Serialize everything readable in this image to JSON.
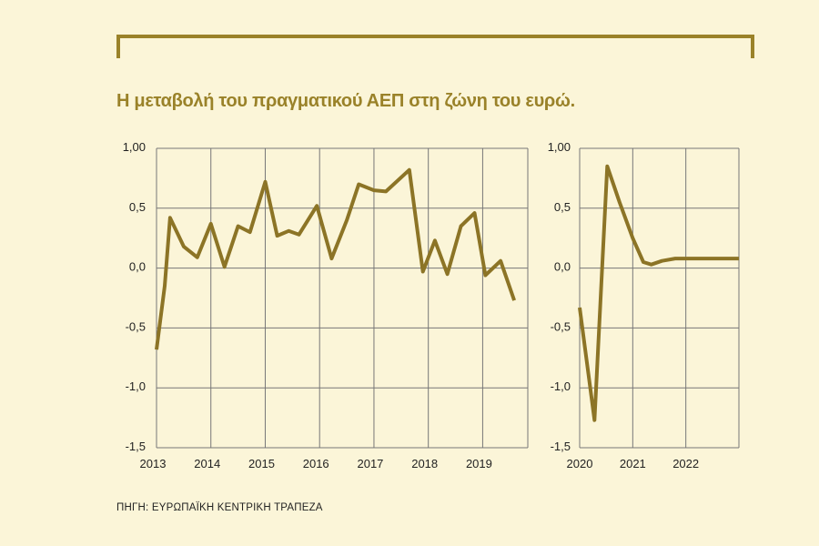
{
  "title": "Η μεταβολή του πραγματικού ΑΕΠ στη ζώνη του ευρώ.",
  "source": "ΠΗΓΗ: ΕΥΡΩΠΑΪΚΗ ΚΕΝΤΡΙΚΗ ΤΡΑΠΕΖΑ",
  "colors": {
    "line": "#8c7426",
    "grid": "#777777",
    "background": "#fbf5d8",
    "accent": "#9a8229"
  },
  "chart_data": [
    {
      "type": "line",
      "title": "",
      "xlabel": "",
      "ylabel": "",
      "xlim": [
        2013,
        2019.83
      ],
      "ylim": [
        -1.5,
        1.0
      ],
      "grid": true,
      "x_ticks": [
        2013,
        2014,
        2015,
        2016,
        2017,
        2018,
        2019
      ],
      "x_tick_labels": [
        "2013",
        "2014",
        "2015",
        "2016",
        "2017",
        "2018",
        "2019"
      ],
      "y_ticks": [
        1.0,
        0.5,
        0.0,
        -0.5,
        -1.0,
        -1.5
      ],
      "y_tick_labels": [
        "1,00",
        "0,5",
        "0,0",
        "-0,5",
        "-1,0",
        "-1,5"
      ],
      "series": [
        {
          "x": [
            2013.0,
            2013.15,
            2013.25,
            2013.5,
            2013.75,
            2014.0,
            2014.25,
            2014.5,
            2014.72,
            2015.0,
            2015.22,
            2015.43,
            2015.62,
            2015.95,
            2016.22,
            2016.5,
            2016.72,
            2017.0,
            2017.22,
            2017.65,
            2017.9,
            2018.12,
            2018.35,
            2018.6,
            2018.85,
            2019.05,
            2019.33,
            2019.58
          ],
          "values": [
            -0.68,
            -0.15,
            0.42,
            0.18,
            0.09,
            0.37,
            0.01,
            0.35,
            0.3,
            0.72,
            0.27,
            0.31,
            0.28,
            0.52,
            0.08,
            0.4,
            0.7,
            0.65,
            0.64,
            0.82,
            -0.03,
            0.23,
            -0.05,
            0.35,
            0.46,
            -0.06,
            0.06,
            -0.27
          ]
        }
      ]
    },
    {
      "type": "line",
      "title": "",
      "xlabel": "",
      "ylabel": "",
      "xlim": [
        2020,
        2023
      ],
      "ylim": [
        -1.5,
        1.0
      ],
      "grid": true,
      "x_ticks": [
        2020,
        2021,
        2022
      ],
      "x_tick_labels": [
        "2020",
        "2021",
        "2022"
      ],
      "y_ticks": [
        1.0,
        0.5,
        0.0,
        -0.5,
        -1.0,
        -1.5
      ],
      "y_tick_labels": [
        "1,00",
        "0,5",
        "0,0",
        "-0,5",
        "-1,0",
        "-1,5"
      ],
      "series": [
        {
          "x": [
            2020.0,
            2020.28,
            2020.52,
            2020.75,
            2021.0,
            2021.2,
            2021.35,
            2021.55,
            2021.8,
            2022.2,
            2022.6,
            2023.0
          ],
          "values": [
            -0.33,
            -1.27,
            0.85,
            0.55,
            0.25,
            0.05,
            0.03,
            0.06,
            0.08,
            0.08,
            0.08,
            0.08
          ]
        }
      ]
    }
  ]
}
